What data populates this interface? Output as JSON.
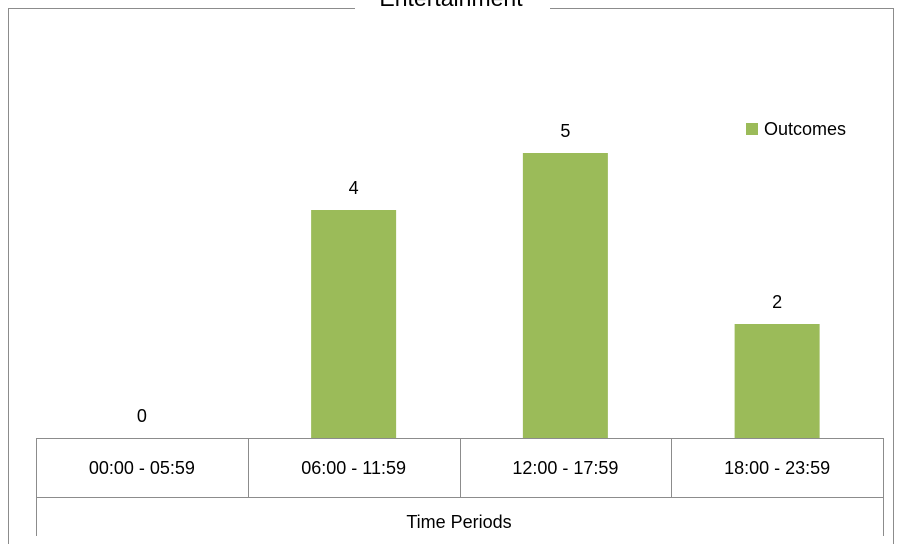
{
  "chart_data": {
    "type": "bar",
    "title": "Entertainment",
    "xlabel": "Time Periods",
    "ylabel": "",
    "categories": [
      "00:00 - 05:59",
      "06:00 - 11:59",
      "12:00 - 17:59",
      "18:00 - 23:59"
    ],
    "series": [
      {
        "name": "Outcomes",
        "values": [
          0,
          4,
          5,
          2
        ],
        "color": "#9bbb59"
      }
    ],
    "data_labels": [
      "0",
      "4",
      "5",
      "2"
    ],
    "ylim": [
      0,
      5
    ],
    "grid": false,
    "legend": "top-right"
  }
}
